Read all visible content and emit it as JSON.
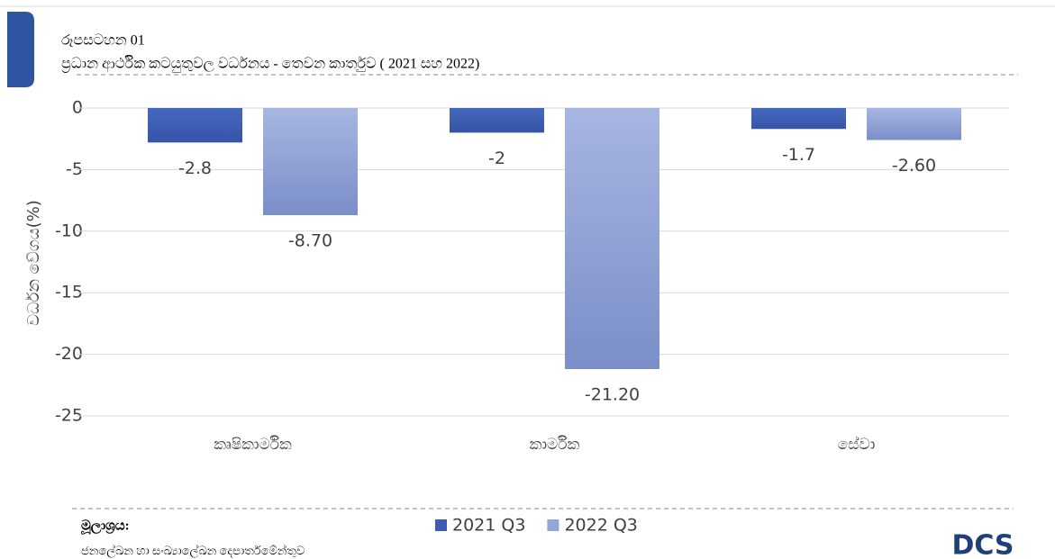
{
  "chart_data": {
    "type": "bar",
    "figure_label": "රූපසටහන 01",
    "title": "ප්‍රධාන ආර්ථික කටයුතුවල වර්ධනය - තෙවන කාර්තුව ( 2021 සහ 2022)",
    "y_label": "වර්ධන වේගය(%)",
    "categories": [
      "කෘෂිකාර්මික",
      "කාර්මික",
      "සේවා"
    ],
    "series": [
      {
        "name": "2021 Q3",
        "color": "#3c5db3",
        "values": [
          -2.8,
          -2,
          -1.7
        ]
      },
      {
        "name": "2022 Q3",
        "color": "#93a5d9",
        "values": [
          -8.7,
          -21.2,
          -2.6
        ],
        "value_labels": [
          "-8.70",
          "-21.20",
          "-2.60"
        ]
      }
    ],
    "ylim": [
      -25,
      0
    ],
    "yticks": [
      0,
      -5,
      -10,
      -15,
      -20,
      -25
    ],
    "grid": true,
    "legend": "bottom",
    "source_label": "මූලාශ්‍රය:",
    "source": "ජනලේඛන හා සංඛ්‍යාලේඛන දෙපාර්තමේන්තුව",
    "logo": "DCS"
  }
}
